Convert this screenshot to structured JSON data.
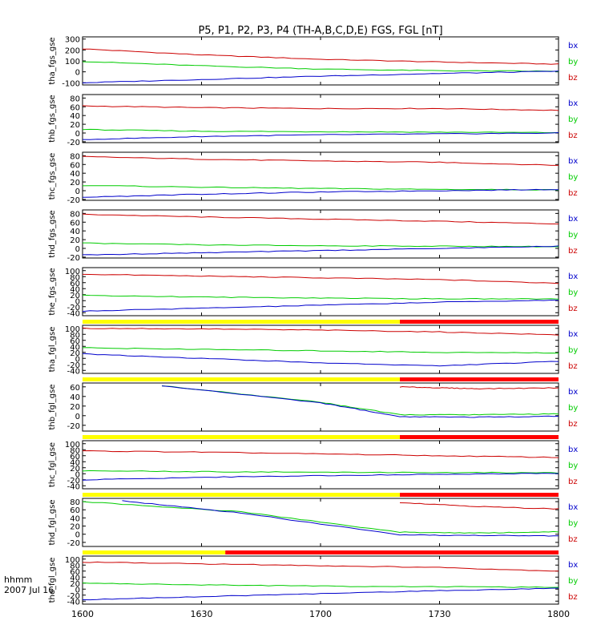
{
  "title": "P5, P1, P2, P3, P4 (TH-A,B,C,D,E) FGS, FGL [nT]",
  "footer": {
    "time_unit": "hhmm",
    "date": "2007 Jul 16"
  },
  "colors": {
    "bx": "#0000cc",
    "by": "#00cc00",
    "bz": "#cc0000",
    "bar_yellow": "#ffff00",
    "bar_red": "#ff0000"
  },
  "chart_data": {
    "type": "line",
    "x_ticks": [
      "1600",
      "1630",
      "1700",
      "1730",
      "1800"
    ],
    "xlim": [
      "1600",
      "1800"
    ],
    "panels": [
      {
        "ylabel": "tha_fgs_gse",
        "ylim": [
          -120,
          320
        ],
        "yticks": [
          "300",
          "200",
          "100",
          "0",
          "-100"
        ],
        "bar": null,
        "series": [
          {
            "name": "bz",
            "x": [
              "1600",
              "1630",
              "1700",
              "1730",
              "1800"
            ],
            "values": [
              210,
              155,
              115,
              90,
              70
            ]
          },
          {
            "name": "by",
            "x": [
              "1600",
              "1630",
              "1700",
              "1730",
              "1800"
            ],
            "values": [
              95,
              55,
              25,
              10,
              5
            ]
          },
          {
            "name": "bx",
            "x": [
              "1600",
              "1630",
              "1700",
              "1730",
              "1800"
            ],
            "values": [
              -100,
              -70,
              -40,
              -15,
              5
            ]
          }
        ]
      },
      {
        "ylabel": "thb_fgs_gse",
        "ylim": [
          -22,
          88
        ],
        "yticks": [
          "80",
          "60",
          "40",
          "20",
          "0",
          "-20"
        ],
        "bar": null,
        "series": [
          {
            "name": "bz",
            "x": [
              "1600",
              "1630",
              "1700",
              "1730",
              "1800"
            ],
            "values": [
              62,
              58,
              56,
              56,
              52
            ]
          },
          {
            "name": "by",
            "x": [
              "1600",
              "1630",
              "1700",
              "1730",
              "1800"
            ],
            "values": [
              8,
              4,
              3,
              2,
              1
            ]
          },
          {
            "name": "bx",
            "x": [
              "1600",
              "1630",
              "1700",
              "1730",
              "1800"
            ],
            "values": [
              -15,
              -8,
              -4,
              -2,
              0
            ]
          }
        ]
      },
      {
        "ylabel": "thc_fgs_gse",
        "ylim": [
          -22,
          88
        ],
        "yticks": [
          "80",
          "60",
          "40",
          "20",
          "0",
          "-20"
        ],
        "bar": null,
        "series": [
          {
            "name": "bz",
            "x": [
              "1600",
              "1630",
              "1700",
              "1730",
              "1800"
            ],
            "values": [
              78,
              72,
              68,
              65,
              58
            ]
          },
          {
            "name": "by",
            "x": [
              "1600",
              "1630",
              "1700",
              "1730",
              "1800"
            ],
            "values": [
              12,
              8,
              5,
              3,
              2
            ]
          },
          {
            "name": "bx",
            "x": [
              "1600",
              "1630",
              "1700",
              "1730",
              "1800"
            ],
            "values": [
              -15,
              -8,
              -3,
              0,
              3
            ]
          }
        ]
      },
      {
        "ylabel": "thd_fgs_gse",
        "ylim": [
          -22,
          88
        ],
        "yticks": [
          "80",
          "60",
          "40",
          "20",
          "0",
          "-20"
        ],
        "bar": null,
        "series": [
          {
            "name": "bz",
            "x": [
              "1600",
              "1630",
              "1700",
              "1730",
              "1800"
            ],
            "values": [
              78,
              72,
              67,
              62,
              56
            ]
          },
          {
            "name": "by",
            "x": [
              "1600",
              "1630",
              "1700",
              "1730",
              "1800"
            ],
            "values": [
              12,
              8,
              6,
              5,
              4
            ]
          },
          {
            "name": "bx",
            "x": [
              "1600",
              "1630",
              "1700",
              "1730",
              "1800"
            ],
            "values": [
              -15,
              -10,
              -5,
              0,
              5
            ]
          }
        ]
      },
      {
        "ylabel": "the_fgs_gse",
        "ylim": [
          -50,
          110
        ],
        "yticks": [
          "100",
          "80",
          "60",
          "40",
          "20",
          "0",
          "-20",
          "-40"
        ],
        "bar": null,
        "series": [
          {
            "name": "bz",
            "x": [
              "1600",
              "1630",
              "1700",
              "1730",
              "1800"
            ],
            "values": [
              88,
              82,
              76,
              70,
              58
            ]
          },
          {
            "name": "by",
            "x": [
              "1600",
              "1630",
              "1700",
              "1730",
              "1800"
            ],
            "values": [
              18,
              12,
              9,
              6,
              6
            ]
          },
          {
            "name": "bx",
            "x": [
              "1600",
              "1630",
              "1700",
              "1730",
              "1800"
            ],
            "values": [
              -35,
              -25,
              -15,
              -5,
              2
            ]
          }
        ]
      },
      {
        "ylabel": "tha_fgl_gse",
        "ylim": [
          -50,
          110
        ],
        "yticks": [
          "100",
          "80",
          "60",
          "40",
          "20",
          "0",
          "-20",
          "-40"
        ],
        "bar": {
          "split": "1720"
        },
        "series": [
          {
            "name": "bz",
            "x": [
              "1600",
              "1630",
              "1700",
              "1730",
              "1800"
            ],
            "values": [
              100,
              98,
              94,
              88,
              78
            ]
          },
          {
            "name": "by",
            "x": [
              "1600",
              "1630",
              "1700",
              "1730",
              "1800"
            ],
            "values": [
              35,
              30,
              25,
              20,
              18
            ]
          },
          {
            "name": "bx",
            "x": [
              "1600",
              "1630",
              "1700",
              "1730",
              "1800"
            ],
            "values": [
              15,
              0,
              -15,
              -25,
              -10
            ]
          }
        ]
      },
      {
        "ylabel": "thb_fgl_gse",
        "ylim": [
          -32,
          68
        ],
        "yticks": [
          "60",
          "40",
          "20",
          "0",
          "-20"
        ],
        "bar": {
          "split": "1720"
        },
        "series": [
          {
            "name": "bz",
            "x": [
              "1720",
              "1730",
              "1740",
              "1800"
            ],
            "values": [
              60,
              58,
              56,
              58
            ]
          },
          {
            "name": "by",
            "x": [
              "1620",
              "1700",
              "1720",
              "1740",
              "1800"
            ],
            "values": [
              62,
              28,
              2,
              2,
              4
            ]
          },
          {
            "name": "bx",
            "x": [
              "1620",
              "1700",
              "1720",
              "1740",
              "1800"
            ],
            "values": [
              62,
              27,
              -2,
              -3,
              -1
            ]
          }
        ]
      },
      {
        "ylabel": "thc_fgl_gse",
        "ylim": [
          -50,
          110
        ],
        "yticks": [
          "100",
          "80",
          "60",
          "40",
          "20",
          "0",
          "-20",
          "-40"
        ],
        "bar": {
          "split": "1720"
        },
        "series": [
          {
            "name": "bz",
            "x": [
              "1600",
              "1630",
              "1700",
              "1730",
              "1800"
            ],
            "values": [
              76,
              72,
              66,
              60,
              54
            ]
          },
          {
            "name": "by",
            "x": [
              "1600",
              "1630",
              "1700",
              "1730",
              "1800"
            ],
            "values": [
              10,
              7,
              5,
              4,
              3
            ]
          },
          {
            "name": "bx",
            "x": [
              "1600",
              "1630",
              "1700",
              "1730",
              "1800"
            ],
            "values": [
              -20,
              -12,
              -6,
              -2,
              2
            ]
          }
        ]
      },
      {
        "ylabel": "thd_fgl_gse",
        "ylim": [
          -30,
          88
        ],
        "yticks": [
          "80",
          "60",
          "40",
          "20",
          "0",
          "-20"
        ],
        "bar": {
          "split": "1720"
        },
        "series": [
          {
            "name": "bz",
            "x": [
              "1720",
              "1740",
              "1800"
            ],
            "values": [
              78,
              68,
              62
            ]
          },
          {
            "name": "by",
            "x": [
              "1600",
              "1640",
              "1720",
              "1740",
              "1800"
            ],
            "values": [
              80,
              55,
              5,
              3,
              6
            ]
          },
          {
            "name": "bx",
            "x": [
              "1610",
              "1640",
              "1720",
              "1740",
              "1800"
            ],
            "values": [
              82,
              52,
              -2,
              -3,
              -4
            ]
          }
        ]
      },
      {
        "ylabel": "the_fgl_gse",
        "ylim": [
          -50,
          110
        ],
        "yticks": [
          "100",
          "80",
          "60",
          "40",
          "20",
          "0",
          "-20",
          "-40"
        ],
        "bar": {
          "split": "1636"
        },
        "series": [
          {
            "name": "bz",
            "x": [
              "1600",
              "1630",
              "1700",
              "1730",
              "1800"
            ],
            "values": [
              90,
              84,
              78,
              72,
              60
            ]
          },
          {
            "name": "by",
            "x": [
              "1600",
              "1630",
              "1700",
              "1730",
              "1800"
            ],
            "values": [
              20,
              14,
              10,
              8,
              6
            ]
          },
          {
            "name": "bx",
            "x": [
              "1600",
              "1630",
              "1700",
              "1730",
              "1800"
            ],
            "values": [
              -35,
              -25,
              -15,
              -5,
              3
            ]
          }
        ]
      }
    ]
  }
}
